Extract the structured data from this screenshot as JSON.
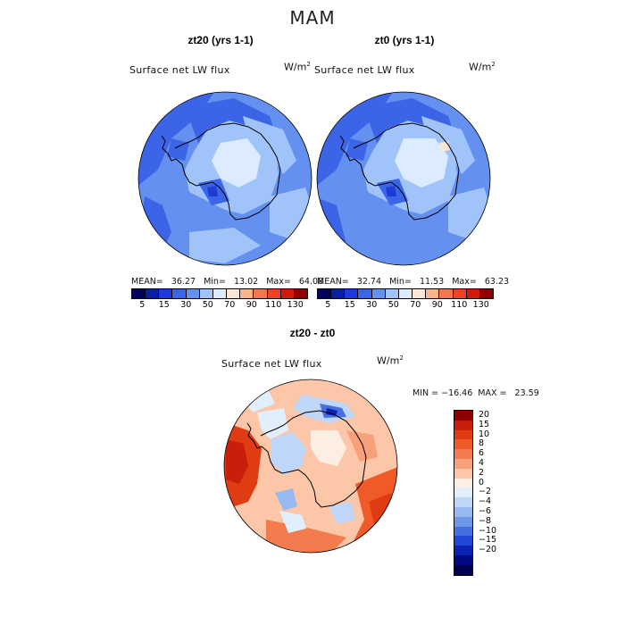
{
  "figure": {
    "season": "MAM"
  },
  "panels": {
    "left": {
      "title": "zt20 (yrs 1-1)",
      "variable": "Surface net LW flux",
      "units_base": "W/m",
      "units_exp": "2",
      "stats": "MEAN=   36.27   Min=   13.02   Max=   64.08"
    },
    "right": {
      "title": "zt0 (yrs 1-1)",
      "variable": "Surface net LW flux",
      "units_base": "W/m",
      "units_exp": "2",
      "stats": "MEAN=   32.74   Min=   11.53   Max=   63.23"
    },
    "diff": {
      "title": "zt20 - zt0",
      "variable": "Surface net LW flux",
      "units_base": "W/m",
      "units_exp": "2",
      "stats": "MIN = −16.46  MAX =   23.59"
    }
  },
  "colorbar_abs": {
    "colors": [
      "#00005a",
      "#0a1ea0",
      "#1e3cd2",
      "#3c64e6",
      "#6490f0",
      "#a0c3fa",
      "#dcebff",
      "#ffe6d2",
      "#fab48c",
      "#f07850",
      "#e64628",
      "#c81e0a",
      "#8c0000"
    ],
    "labels": [
      "5",
      "15",
      "30",
      "50",
      "70",
      "90",
      "110",
      "130"
    ]
  },
  "colorbar_diff": {
    "colors": [
      "#8c0000",
      "#c81e0a",
      "#e03c14",
      "#f05a28",
      "#f47b4e",
      "#f8a07a",
      "#fcc6a8",
      "#fdeee4",
      "#e1eefc",
      "#bed7f8",
      "#96b9f0",
      "#6e96e6",
      "#466ee0",
      "#2346d7",
      "#0a23b4",
      "#000a82",
      "#000050"
    ],
    "labels": [
      "20",
      "15",
      "10",
      "8",
      "6",
      "4",
      "2",
      "0",
      "−2",
      "−4",
      "−6",
      "−8",
      "−10",
      "−15",
      "−20"
    ]
  }
}
